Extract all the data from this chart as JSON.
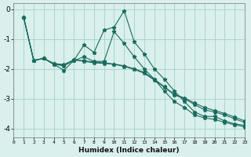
{
  "xlabel": "Humidex (Indice chaleur)",
  "background_color": "#d9f0ed",
  "grid_color": "#aed4ce",
  "line_color": "#1a6b5e",
  "xlim": [
    0,
    23
  ],
  "ylim": [
    -4.3,
    0.2
  ],
  "yticks": [
    0,
    -1,
    -2,
    -3,
    -4
  ],
  "xticks": [
    0,
    1,
    2,
    3,
    4,
    5,
    6,
    7,
    8,
    9,
    10,
    11,
    12,
    13,
    14,
    15,
    16,
    17,
    18,
    19,
    20,
    21,
    22,
    23
  ],
  "series": [
    {
      "x": [
        1,
        2,
        3,
        4,
        5,
        6,
        7,
        8,
        9,
        10,
        11,
        12,
        13,
        14,
        15,
        16,
        17,
        18,
        19,
        20,
        21,
        22,
        23
      ],
      "y": [
        -0.27,
        -1.72,
        -1.65,
        -1.85,
        -2.05,
        -1.72,
        -1.2,
        -1.45,
        -0.7,
        -0.6,
        -0.05,
        -1.1,
        -1.5,
        -2.0,
        -2.35,
        -2.75,
        -3.1,
        -3.45,
        -3.6,
        -3.6,
        -3.75,
        -3.85,
        -3.9
      ]
    },
    {
      "x": [
        1,
        2,
        3,
        4,
        5,
        6,
        7,
        8,
        9,
        10,
        11,
        12,
        13,
        14,
        15,
        16,
        17,
        18,
        19,
        20,
        21,
        22,
        23
      ],
      "y": [
        -0.27,
        -1.72,
        -1.65,
        -1.85,
        -1.9,
        -1.72,
        -1.6,
        -1.75,
        -1.75,
        -0.75,
        -1.15,
        -1.6,
        -2.0,
        -2.35,
        -2.75,
        -3.1,
        -3.3,
        -3.55,
        -3.65,
        -3.7,
        -3.8,
        -3.88,
        -3.95
      ]
    },
    {
      "x": [
        1,
        2,
        3,
        4,
        5,
        6,
        7,
        8,
        9,
        10,
        11,
        12,
        13,
        14,
        15,
        16,
        17,
        18,
        19,
        20,
        21,
        22,
        23
      ],
      "y": [
        -0.27,
        -1.72,
        -1.65,
        -1.83,
        -1.88,
        -1.7,
        -1.75,
        -1.8,
        -1.82,
        -1.85,
        -1.92,
        -2.02,
        -2.15,
        -2.38,
        -2.62,
        -2.88,
        -3.0,
        -3.2,
        -3.38,
        -3.45,
        -3.55,
        -3.68,
        -3.8
      ]
    },
    {
      "x": [
        1,
        2,
        3,
        4,
        5,
        6,
        7,
        8,
        9,
        10,
        11,
        12,
        13,
        14,
        15,
        16,
        17,
        18,
        19,
        20,
        21,
        22,
        23
      ],
      "y": [
        -0.27,
        -1.72,
        -1.65,
        -1.82,
        -1.86,
        -1.7,
        -1.73,
        -1.77,
        -1.8,
        -1.84,
        -1.9,
        -2.0,
        -2.12,
        -2.35,
        -2.6,
        -2.86,
        -2.98,
        -3.15,
        -3.3,
        -3.4,
        -3.5,
        -3.62,
        -3.75
      ]
    }
  ]
}
